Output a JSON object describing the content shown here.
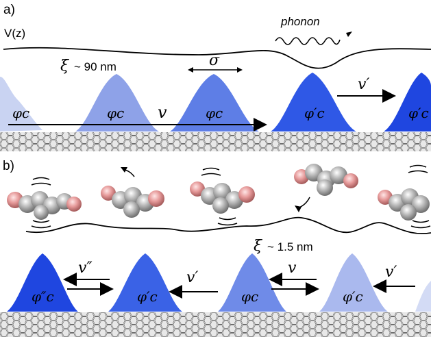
{
  "panel_a": {
    "label": "a)",
    "potential_label": "V(z)",
    "phonon_label": "phonon",
    "xi_symbol": "ξ",
    "xi_value": "~ 90 nm",
    "sigma_symbol": "σ",
    "v_label": "v",
    "v_prime_label": "v′",
    "packets": [
      {
        "label": "φc",
        "shade": "#c9d3f2"
      },
      {
        "label": "φc",
        "shade": "#8ea2e8"
      },
      {
        "label": "φc",
        "shade": "#5e7ee6"
      },
      {
        "label": "φ′c",
        "shade": "#2f58e6"
      },
      {
        "label": "φ′c",
        "shade": "#1f46e0"
      }
    ]
  },
  "panel_b": {
    "label": "b)",
    "xi_symbol": "ξ",
    "xi_value": "~ 1.5 nm",
    "v_double_prime_label": "v″",
    "v_prime_label_1": "v′",
    "v_label": "v",
    "v_prime_label_2": "v′",
    "packets": [
      {
        "label": "φ″c",
        "shade": "#1f46e0"
      },
      {
        "label": "φ′c",
        "shade": "#3a62e6"
      },
      {
        "label": "φc",
        "shade": "#6f8be8"
      },
      {
        "label": "φ′c",
        "shade": "#aab9ee"
      }
    ]
  },
  "colors": {
    "molecule_body": "#b5b5b5",
    "molecule_oxygen": "#e59a9a",
    "lattice": "#8a8a8a"
  }
}
